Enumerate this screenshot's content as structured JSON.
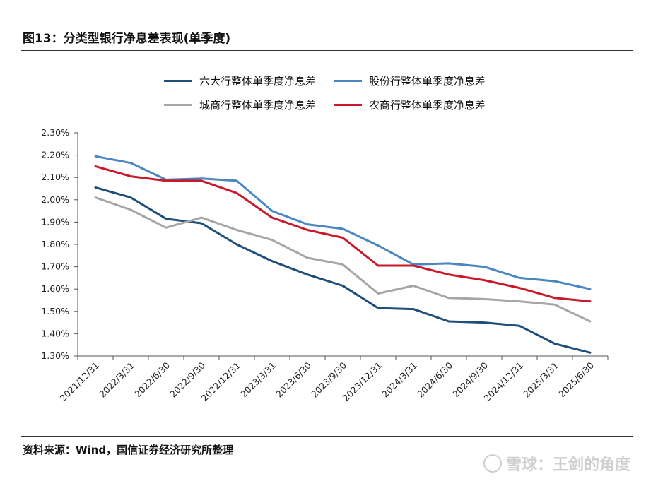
{
  "header": {
    "title": "图13：分类型银行净息差表现(单季度)"
  },
  "footer": {
    "source": "资料来源：Wind，国信证券经济研究所整理"
  },
  "watermark": {
    "text": "雪球：王剑的角度"
  },
  "chart_data": {
    "type": "line",
    "title": "图13：分类型银行净息差表现(单季度)",
    "x": [
      "2021/12/31",
      "2022/3/31",
      "2022/6/30",
      "2022/9/30",
      "2022/12/31",
      "2023/3/31",
      "2023/6/30",
      "2023/9/30",
      "2023/12/31",
      "2024/3/31",
      "2024/6/30",
      "2024/9/30",
      "2024/12/31",
      "2025/3/31",
      "2025/6/30"
    ],
    "ylim": [
      1.3,
      2.3
    ],
    "yticks": [
      1.3,
      1.4,
      1.5,
      1.6,
      1.7,
      1.8,
      1.9,
      2.0,
      2.1,
      2.2,
      2.3
    ],
    "ytick_labels": [
      "1.30%",
      "1.40%",
      "1.50%",
      "1.60%",
      "1.70%",
      "1.80%",
      "1.90%",
      "2.00%",
      "2.10%",
      "2.20%",
      "2.30%"
    ],
    "legend_position": "top",
    "series": [
      {
        "name": "六大行整体单季度净息差",
        "color": "#1f4e79",
        "values": [
          2.055,
          2.01,
          1.915,
          1.895,
          1.8,
          1.725,
          1.665,
          1.615,
          1.515,
          1.51,
          1.455,
          1.45,
          1.435,
          1.355,
          1.315
        ]
      },
      {
        "name": "股份行整体单季度净息差",
        "color": "#4a86c0",
        "values": [
          2.195,
          2.165,
          2.09,
          2.095,
          2.085,
          1.95,
          1.89,
          1.87,
          1.795,
          1.71,
          1.715,
          1.7,
          1.65,
          1.635,
          1.6
        ]
      },
      {
        "name": "城商行整体单季度净息差",
        "color": "#a6a6a6",
        "values": [
          2.01,
          1.955,
          1.875,
          1.92,
          1.865,
          1.82,
          1.74,
          1.71,
          1.58,
          1.615,
          1.56,
          1.555,
          1.545,
          1.53,
          1.455
        ]
      },
      {
        "name": "农商行整体单季度净息差",
        "color": "#c81a2c",
        "values": [
          2.15,
          2.105,
          2.085,
          2.085,
          2.03,
          1.92,
          1.865,
          1.83,
          1.705,
          1.705,
          1.665,
          1.64,
          1.605,
          1.56,
          1.545
        ]
      }
    ]
  }
}
